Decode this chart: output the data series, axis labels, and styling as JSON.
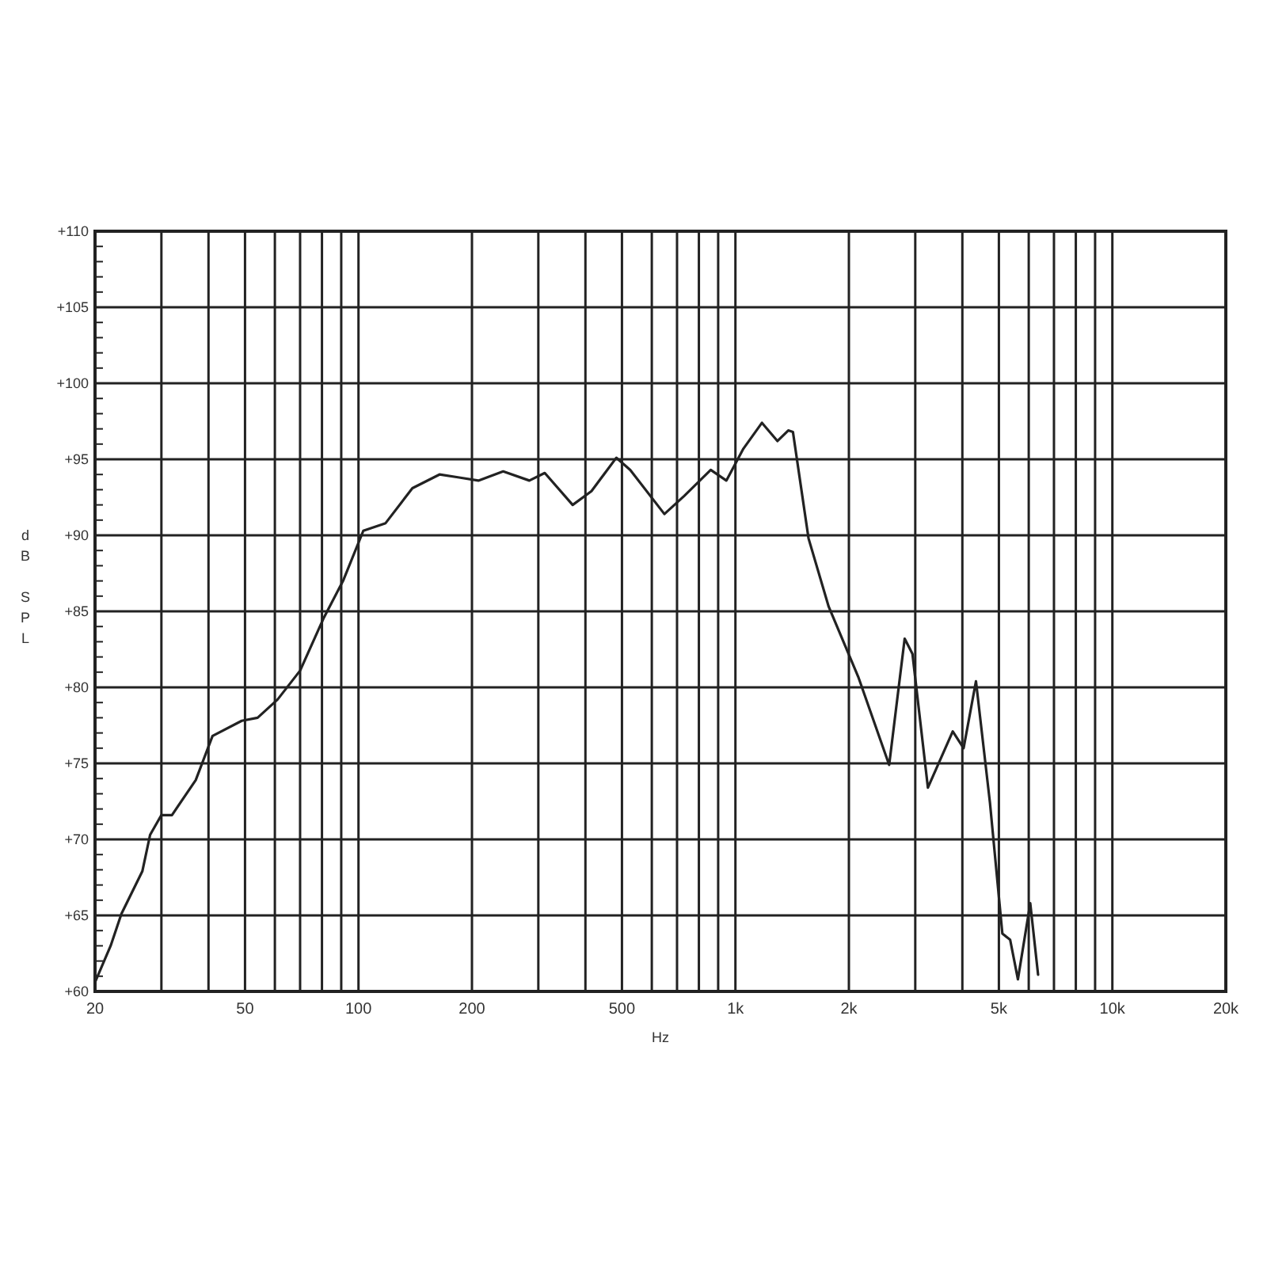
{
  "chart_data": {
    "type": "line",
    "xlabel": "Hz",
    "ylabel": "dB SPL",
    "log": "x",
    "grid": true,
    "marker": "none",
    "line_style": "solid",
    "xlim": [
      20,
      20000
    ],
    "ylim": [
      60,
      110
    ],
    "xticks": [
      20,
      {
        "value": 30,
        "label": null
      },
      {
        "value": 40,
        "label": null
      },
      50,
      {
        "value": 60,
        "label": null
      },
      {
        "value": 70,
        "label": null
      },
      {
        "value": 80,
        "label": null
      },
      {
        "value": 90,
        "label": null
      },
      100,
      200,
      {
        "value": 300,
        "label": null
      },
      {
        "value": 400,
        "label": null
      },
      500,
      {
        "value": 600,
        "label": null
      },
      {
        "value": 700,
        "label": null
      },
      {
        "value": 800,
        "label": null
      },
      {
        "value": 900,
        "label": null
      },
      {
        "value": 1000,
        "label": "1k"
      },
      {
        "value": 2000,
        "label": "2k"
      },
      {
        "value": 3000,
        "label": null
      },
      {
        "value": 4000,
        "label": null
      },
      {
        "value": 5000,
        "label": "5k"
      },
      {
        "value": 6000,
        "label": null
      },
      {
        "value": 7000,
        "label": null
      },
      {
        "value": 8000,
        "label": null
      },
      {
        "value": 9000,
        "label": null
      },
      {
        "value": 10000,
        "label": "10k"
      },
      {
        "value": 20000,
        "label": "20k"
      }
    ],
    "yticks": [
      {
        "value": 60,
        "label": "+60"
      },
      {
        "value": 65,
        "label": "+65"
      },
      {
        "value": 70,
        "label": "+70"
      },
      {
        "value": 75,
        "label": "+75"
      },
      {
        "value": 80,
        "label": "+80"
      },
      {
        "value": 85,
        "label": "+85"
      },
      {
        "value": 90,
        "label": "+90"
      },
      {
        "value": 95,
        "label": "+95"
      },
      {
        "value": 100,
        "label": "+100"
      },
      {
        "value": 105,
        "label": "+105"
      },
      {
        "value": 110,
        "label": "+110"
      }
    ],
    "x": [
      20,
      22,
      23.5,
      26.7,
      28,
      30,
      32,
      37,
      41,
      49,
      54,
      61,
      70,
      81,
      91,
      103,
      118,
      139,
      164,
      185,
      208,
      242,
      284,
      312,
      370,
      415,
      483,
      526,
      648,
      732,
      860,
      946,
      1050,
      1176,
      1293,
      1381,
      1421,
      1563,
      1768,
      2117,
      2558,
      2812,
      2949,
      3241,
      3772,
      4031,
      4347,
      4735,
      5108,
      5356,
      5616,
      6056,
      6353
    ],
    "series": [
      {
        "color": "#222222",
        "values": [
          60.6,
          63,
          65.1,
          67.9,
          70.3,
          71.6,
          71.6,
          73.9,
          76.8,
          77.8,
          78,
          79.2,
          81.1,
          84.6,
          87,
          90.3,
          90.8,
          93.1,
          94,
          93.8,
          93.6,
          94.2,
          93.6,
          94.1,
          92,
          92.9,
          95.1,
          94.3,
          91.4,
          92.6,
          94.3,
          93.6,
          95.7,
          97.4,
          96.2,
          96.9,
          96.8,
          89.8,
          85.3,
          80.7,
          74.9,
          83.2,
          82.2,
          73.4,
          77.1,
          76,
          80.4,
          72.4,
          63.8,
          63.4,
          60.8,
          65.8,
          61.1
        ]
      }
    ]
  }
}
